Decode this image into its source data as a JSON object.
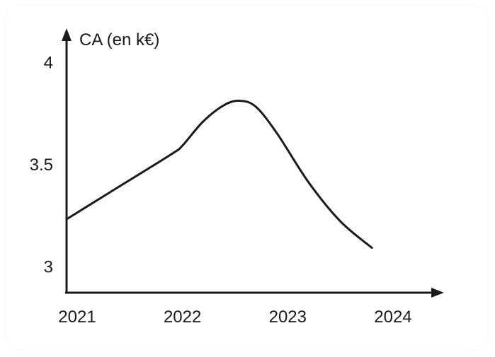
{
  "chart_data": {
    "type": "line",
    "title": "",
    "ylabel": "CA (en k€)",
    "xlabel": "",
    "x_ticks": [
      "2021",
      "2022",
      "2023",
      "2024"
    ],
    "y_ticks": [
      "3",
      "3.5",
      "4"
    ],
    "xlim": [
      2021,
      2024.7
    ],
    "ylim": [
      2.87,
      4.2
    ],
    "grid": false,
    "series": [
      {
        "x": [
          2021,
          2021.5,
          2022,
          2022.1,
          2022.3,
          2022.5,
          2022.65,
          2022.8,
          2023,
          2023.3,
          2023.6,
          2023.9
        ],
        "y": [
          3.23,
          3.39,
          3.55,
          3.59,
          3.71,
          3.79,
          3.81,
          3.78,
          3.65,
          3.41,
          3.22,
          3.09
        ]
      }
    ],
    "line_color": "#1a1a1a"
  }
}
